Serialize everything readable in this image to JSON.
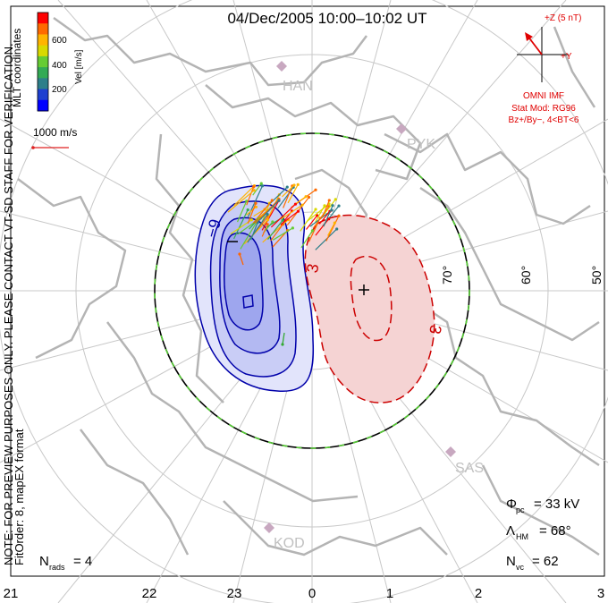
{
  "header": {
    "title": "04/Dec/2005 10:00–10:02 UT"
  },
  "side_note": {
    "line1": "NOTE: FOR PREVIEW PURPOSES ONLY. PLEASE CONTACT VT-SD STAFF FOR VERIFICATION.",
    "line2": "FitOrder: 8, mapEX format"
  },
  "coords_label": "MLT coordinates",
  "color_scale": {
    "title": "Vel [m/s]",
    "ticks": [
      "600",
      "400",
      "200"
    ],
    "colors": [
      "#ff0000",
      "#ff6a00",
      "#ffb400",
      "#d9d900",
      "#66cc33",
      "#33aa55",
      "#2d7f8a",
      "#1d3fd0",
      "#0000ff"
    ]
  },
  "vector_ref": {
    "label": "1000 m/s",
    "color": "#e02020"
  },
  "imf": {
    "bz_label": "+Z (5 nT)",
    "by_label": "+Y",
    "source": "OMNI IMF",
    "stat_mod": "Stat Mod: RG96",
    "conditions": "Bz+/By−, 4<BT<6",
    "color": "#e00000"
  },
  "latitude_labels": [
    "70°",
    "60°",
    "50°"
  ],
  "stations": [
    "HAN",
    "PYK",
    "SAS",
    "KOD"
  ],
  "contour_labels": {
    "negative": "−9",
    "positive": "3",
    "negative_2": "−3",
    "positive_2": "3"
  },
  "mlt_axis": [
    "21",
    "22",
    "23",
    "0",
    "1",
    "2",
    "3"
  ],
  "stats": {
    "phi_label": "Φ",
    "phi_sub": "pc",
    "phi_value": "= 33 kV",
    "lambda_label": "Λ",
    "lambda_sub": "HM",
    "lambda_value": "= 68°",
    "nvc_label": "N",
    "nvc_sub": "vc",
    "nvc_value": "= 62",
    "nrads_label": "N",
    "nrads_sub": "rads",
    "nrads_value": "= 4"
  },
  "colors": {
    "grid": "#c8c8c8",
    "coast": "#b4b4b4",
    "negative_fill": "#aab0f0",
    "negative_line": "#0000aa",
    "positive_fill": "#f4c8c8",
    "positive_line": "#cc0000",
    "boundary": "#000000",
    "boundary_dash": "#55cc33"
  }
}
